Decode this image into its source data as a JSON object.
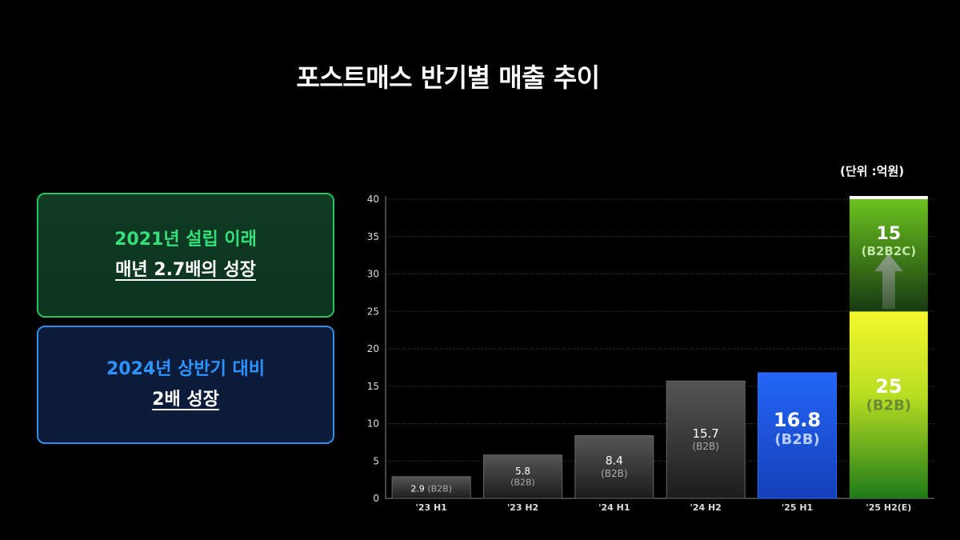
{
  "page": {
    "title": "포스트매스 반기별 매출 추이",
    "unit_note": "(단위 :억원)"
  },
  "callouts": [
    {
      "line1": "2021년 설립 이래",
      "line2": "매년 2.7배의 성장",
      "accent": "#35e07a"
    },
    {
      "line1": "2024년 상반기 대비",
      "line2": "2배 성장",
      "accent": "#2d93ff"
    }
  ],
  "chart_data": {
    "type": "bar",
    "stacked": true,
    "categories": [
      "'23 H1",
      "'23 H2",
      "'24 H1",
      "'24 H2",
      "'25 H1",
      "'25 H2(E)"
    ],
    "series": [
      {
        "name": "B2B",
        "values": [
          2.9,
          5.8,
          8.4,
          15.7,
          16.8,
          25
        ]
      },
      {
        "name": "B2B2C",
        "values": [
          0,
          0,
          0,
          0,
          0,
          15
        ]
      }
    ],
    "bar_labels": [
      {
        "value": "2.9",
        "tag": "(B2B)"
      },
      {
        "value": "5.8",
        "tag": "(B2B)"
      },
      {
        "value": "8.4",
        "tag": "(B2B)"
      },
      {
        "value": "15.7",
        "tag": "(B2B)"
      },
      {
        "value": "16.8",
        "tag": "(B2B)"
      },
      {
        "value": "25",
        "tag": "(B2B)"
      }
    ],
    "stack_label": {
      "value": "15",
      "tag": "(B2B2C)"
    },
    "ylim": [
      0,
      40
    ],
    "yticks": [
      0,
      5,
      10,
      15,
      20,
      25,
      30,
      35,
      40
    ],
    "grid": true,
    "colors": {
      "past": "#4a4a4a",
      "h1_2025": "#1f5cf0",
      "b2b_forecast": "#dff02a",
      "b2b2c_forecast": "#5cae1f"
    }
  }
}
